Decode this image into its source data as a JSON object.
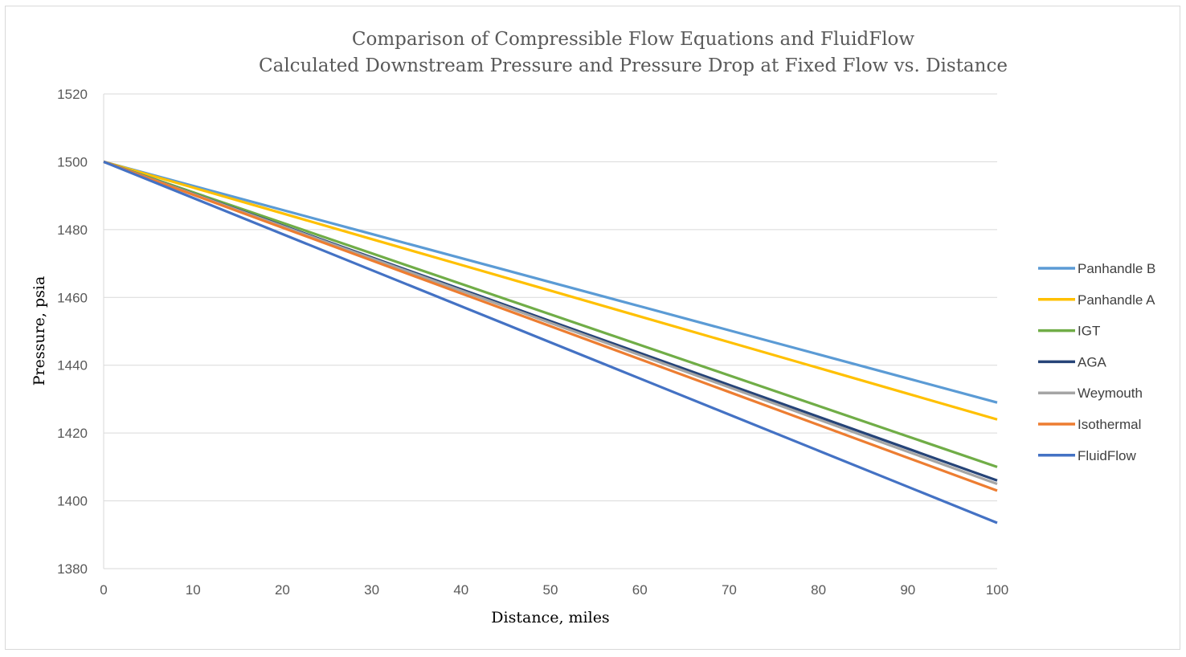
{
  "chart_data": {
    "type": "line",
    "title": "Comparison of Compressible Flow Equations and FluidFlow",
    "subtitle": "Calculated Downstream Pressure and Pressure Drop at Fixed Flow vs. Distance",
    "xlabel": "Distance, miles",
    "ylabel": "Pressure, psia",
    "xlim": [
      0,
      100
    ],
    "ylim": [
      1380,
      1520
    ],
    "xticks": [
      0,
      10,
      20,
      30,
      40,
      50,
      60,
      70,
      80,
      90,
      100
    ],
    "yticks": [
      1380,
      1400,
      1420,
      1440,
      1460,
      1480,
      1500,
      1520
    ],
    "grid": "horizontal",
    "legend": "right",
    "x": [
      0,
      10,
      20,
      30,
      40,
      50,
      60,
      70,
      80,
      90,
      100
    ],
    "series": [
      {
        "name": "Panhandle B",
        "color": "#5b9bd5",
        "values": [
          1500,
          1492.9,
          1485.8,
          1478.7,
          1471.6,
          1464.5,
          1457.4,
          1450.3,
          1443.2,
          1436.1,
          1429
        ]
      },
      {
        "name": "Panhandle A",
        "color": "#ffc000",
        "values": [
          1500,
          1492.4,
          1484.8,
          1477.2,
          1469.6,
          1462,
          1454.4,
          1446.8,
          1439.2,
          1431.6,
          1424
        ]
      },
      {
        "name": "IGT",
        "color": "#70ad47",
        "values": [
          1500,
          1491,
          1482,
          1473,
          1464,
          1455,
          1446,
          1437,
          1428,
          1419,
          1410
        ]
      },
      {
        "name": "AGA",
        "color": "#264478",
        "values": [
          1500,
          1490.6,
          1481.2,
          1471.8,
          1462.4,
          1453,
          1443.6,
          1434.2,
          1424.8,
          1415.4,
          1406
        ]
      },
      {
        "name": "Weymouth",
        "color": "#a5a5a5",
        "values": [
          1500,
          1490.5,
          1481,
          1471.5,
          1462,
          1452.5,
          1443,
          1433.5,
          1424,
          1414.5,
          1405
        ]
      },
      {
        "name": "Isothermal",
        "color": "#ed7d31",
        "values": [
          1500,
          1490.3,
          1480.6,
          1470.9,
          1461.2,
          1451.5,
          1441.8,
          1432.1,
          1422.4,
          1412.7,
          1403
        ]
      },
      {
        "name": "FluidFlow",
        "color": "#4472c4",
        "values": [
          1500,
          1489.35,
          1478.7,
          1468.05,
          1457.4,
          1446.75,
          1436.1,
          1425.45,
          1414.8,
          1404.15,
          1393.5
        ]
      }
    ]
  }
}
